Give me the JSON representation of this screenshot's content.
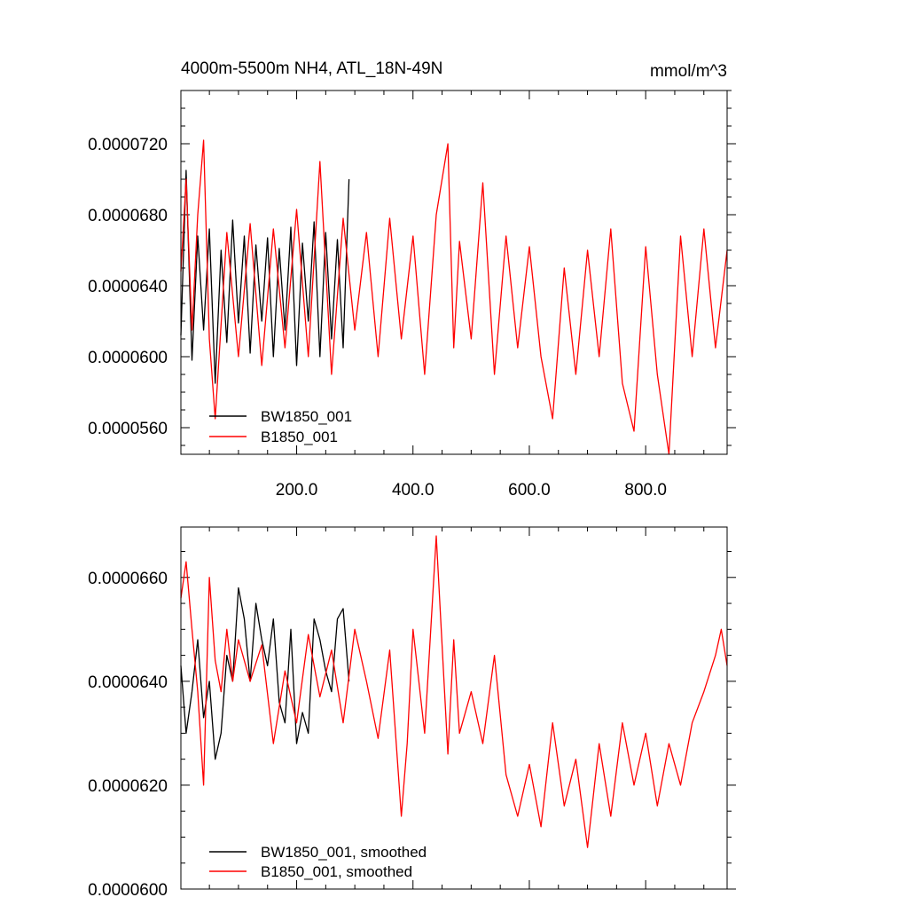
{
  "chart_data": [
    {
      "type": "line",
      "title": "4000m-5500m NH4, ATL_18N-49N",
      "units": "mmol/m^3",
      "xlim": [
        1,
        940
      ],
      "ylim": [
        5.45e-05,
        7.5e-05
      ],
      "xticks": [
        200,
        400,
        600,
        800
      ],
      "xtick_labels": [
        "200.0",
        "400.0",
        "600.0",
        "800.0"
      ],
      "yticks": [
        5.6e-05,
        6e-05,
        6.4e-05,
        6.8e-05,
        7.2e-05
      ],
      "ytick_labels": [
        "0.0000560",
        "0.0000600",
        "0.0000640",
        "0.0000680",
        "0.0000720"
      ],
      "grid": false,
      "legend_position": "bottom-left",
      "series": [
        {
          "name": "BW1850_001",
          "color": "#000000",
          "x": [
            1,
            10,
            20,
            30,
            40,
            50,
            60,
            70,
            80,
            90,
            100,
            110,
            120,
            130,
            140,
            150,
            160,
            170,
            180,
            190,
            200,
            210,
            220,
            230,
            240,
            250,
            260,
            270,
            280,
            290
          ],
          "values": [
            6.12e-05,
            7.05e-05,
            5.98e-05,
            6.68e-05,
            6.15e-05,
            6.72e-05,
            5.85e-05,
            6.6e-05,
            6.08e-05,
            6.77e-05,
            6.19e-05,
            6.68e-05,
            6.02e-05,
            6.63e-05,
            6.2e-05,
            6.67e-05,
            6e-05,
            6.61e-05,
            6.15e-05,
            6.73e-05,
            5.95e-05,
            6.64e-05,
            6.2e-05,
            6.76e-05,
            6e-05,
            6.7e-05,
            6.1e-05,
            6.66e-05,
            6.05e-05,
            7e-05
          ]
        },
        {
          "name": "B1850_001",
          "color": "#ff0000",
          "x": [
            1,
            10,
            20,
            30,
            40,
            50,
            60,
            80,
            100,
            120,
            140,
            160,
            180,
            200,
            220,
            240,
            260,
            280,
            300,
            320,
            340,
            360,
            380,
            400,
            420,
            440,
            460,
            470,
            480,
            500,
            520,
            540,
            560,
            580,
            600,
            620,
            640,
            660,
            680,
            700,
            720,
            740,
            760,
            780,
            800,
            820,
            840,
            860,
            880,
            900,
            920,
            940
          ],
          "values": [
            6.48e-05,
            7e-05,
            6.15e-05,
            6.8e-05,
            7.22e-05,
            6.1e-05,
            5.65e-05,
            6.7e-05,
            6e-05,
            6.75e-05,
            5.95e-05,
            6.72e-05,
            6.05e-05,
            6.83e-05,
            6e-05,
            7.1e-05,
            5.9e-05,
            6.78e-05,
            6.15e-05,
            6.7e-05,
            6e-05,
            6.78e-05,
            6.1e-05,
            6.68e-05,
            5.9e-05,
            6.8e-05,
            7.2e-05,
            6.05e-05,
            6.65e-05,
            6.1e-05,
            6.98e-05,
            5.9e-05,
            6.68e-05,
            6.05e-05,
            6.62e-05,
            6e-05,
            5.65e-05,
            6.5e-05,
            5.9e-05,
            6.6e-05,
            6e-05,
            6.72e-05,
            5.85e-05,
            5.58e-05,
            6.62e-05,
            5.9e-05,
            5.45e-05,
            6.68e-05,
            6e-05,
            6.72e-05,
            6.05e-05,
            6.6e-05
          ]
        }
      ]
    },
    {
      "type": "line",
      "xlim": [
        1,
        940
      ],
      "ylim": [
        6e-05,
        6.697e-05
      ],
      "yticks": [
        6e-05,
        6.2e-05,
        6.4e-05,
        6.6e-05
      ],
      "ytick_labels": [
        "0.0000600",
        "0.0000620",
        "0.0000640",
        "0.0000660"
      ],
      "grid": false,
      "legend_position": "bottom-left",
      "series": [
        {
          "name": "BW1850_001, smoothed",
          "color": "#000000",
          "x": [
            1,
            10,
            20,
            30,
            40,
            50,
            60,
            70,
            80,
            90,
            100,
            110,
            120,
            130,
            140,
            150,
            160,
            170,
            180,
            190,
            200,
            210,
            220,
            230,
            240,
            250,
            260,
            270,
            280,
            290
          ],
          "values": [
            6.43e-05,
            6.3e-05,
            6.38e-05,
            6.48e-05,
            6.33e-05,
            6.4e-05,
            6.25e-05,
            6.3e-05,
            6.45e-05,
            6.4e-05,
            6.58e-05,
            6.52e-05,
            6.4e-05,
            6.55e-05,
            6.48e-05,
            6.43e-05,
            6.52e-05,
            6.36e-05,
            6.32e-05,
            6.5e-05,
            6.28e-05,
            6.34e-05,
            6.3e-05,
            6.52e-05,
            6.48e-05,
            6.42e-05,
            6.38e-05,
            6.52e-05,
            6.54e-05,
            6.4e-05
          ]
        },
        {
          "name": "B1850_001, smoothed",
          "color": "#ff0000",
          "x": [
            1,
            10,
            20,
            30,
            40,
            50,
            60,
            70,
            80,
            90,
            100,
            120,
            140,
            160,
            180,
            200,
            220,
            240,
            260,
            280,
            300,
            320,
            340,
            360,
            380,
            390,
            400,
            420,
            440,
            460,
            470,
            480,
            500,
            520,
            540,
            560,
            580,
            600,
            620,
            640,
            660,
            680,
            700,
            720,
            740,
            760,
            780,
            800,
            820,
            840,
            860,
            880,
            900,
            920,
            930,
            940
          ],
          "values": [
            6.56e-05,
            6.63e-05,
            6.5e-05,
            6.38e-05,
            6.2e-05,
            6.6e-05,
            6.44e-05,
            6.38e-05,
            6.5e-05,
            6.4e-05,
            6.48e-05,
            6.4e-05,
            6.47e-05,
            6.28e-05,
            6.42e-05,
            6.32e-05,
            6.49e-05,
            6.37e-05,
            6.46e-05,
            6.32e-05,
            6.5e-05,
            6.4e-05,
            6.29e-05,
            6.46e-05,
            6.14e-05,
            6.28e-05,
            6.5e-05,
            6.3e-05,
            6.68e-05,
            6.26e-05,
            6.48e-05,
            6.3e-05,
            6.38e-05,
            6.28e-05,
            6.45e-05,
            6.22e-05,
            6.14e-05,
            6.24e-05,
            6.12e-05,
            6.32e-05,
            6.16e-05,
            6.25e-05,
            6.08e-05,
            6.28e-05,
            6.14e-05,
            6.32e-05,
            6.2e-05,
            6.3e-05,
            6.16e-05,
            6.28e-05,
            6.2e-05,
            6.32e-05,
            6.38e-05,
            6.45e-05,
            6.5e-05,
            6.43e-05
          ]
        }
      ]
    }
  ]
}
